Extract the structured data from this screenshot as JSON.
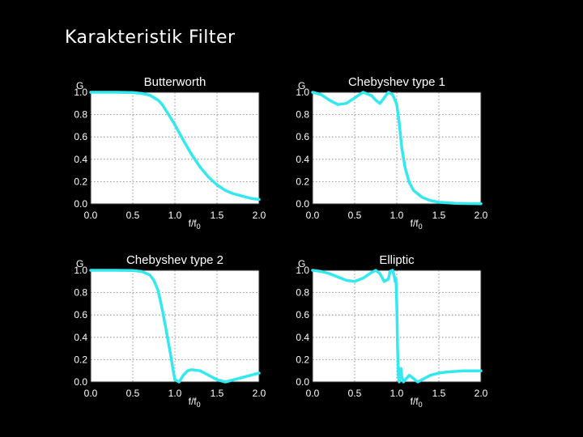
{
  "title": "Karakteristik Filter",
  "colors": {
    "background": "#000000",
    "curve": "#33e8ef",
    "plot_bg": "#ffffff",
    "grid": "#777777",
    "text": "#ffffff"
  },
  "chart_data": [
    {
      "type": "line",
      "title": "Butterworth",
      "ylabel": "G",
      "xlabel": "f/f0",
      "xlim": [
        0,
        2
      ],
      "ylim": [
        0,
        1
      ],
      "xticks": [
        "0.0",
        "0.5",
        "1.0",
        "1.5",
        "2.0"
      ],
      "yticks": [
        "0.0",
        "0.2",
        "0.4",
        "0.6",
        "0.8",
        "1.0"
      ],
      "grid": true,
      "series": [
        {
          "x": [
            0,
            0.3,
            0.5,
            0.6,
            0.7,
            0.8,
            0.85,
            0.9,
            0.95,
            1.0,
            1.05,
            1.1,
            1.2,
            1.3,
            1.4,
            1.5,
            1.6,
            1.7,
            1.8,
            1.9,
            2.0
          ],
          "y": [
            1.0,
            1.0,
            0.997,
            0.99,
            0.975,
            0.93,
            0.89,
            0.83,
            0.77,
            0.707,
            0.64,
            0.57,
            0.44,
            0.33,
            0.24,
            0.17,
            0.12,
            0.09,
            0.07,
            0.05,
            0.04
          ]
        }
      ]
    },
    {
      "type": "line",
      "title": "Chebyshev type 1",
      "ylabel": "G",
      "xlabel": "f/f0",
      "xlim": [
        0,
        2
      ],
      "ylim": [
        0,
        1
      ],
      "xticks": [
        "0.0",
        "0.5",
        "1.0",
        "1.5",
        "2.0"
      ],
      "yticks": [
        "0.0",
        "0.2",
        "0.4",
        "0.6",
        "0.8",
        "1.0"
      ],
      "grid": true,
      "series": [
        {
          "x": [
            0,
            0.1,
            0.2,
            0.3,
            0.4,
            0.5,
            0.6,
            0.7,
            0.75,
            0.8,
            0.85,
            0.9,
            0.95,
            0.98,
            1.0,
            1.03,
            1.06,
            1.1,
            1.15,
            1.2,
            1.3,
            1.4,
            1.5,
            1.7,
            2.0
          ],
          "y": [
            1.0,
            0.98,
            0.93,
            0.89,
            0.9,
            0.95,
            1.0,
            0.97,
            0.93,
            0.9,
            0.95,
            1.0,
            0.98,
            0.93,
            0.89,
            0.72,
            0.5,
            0.32,
            0.19,
            0.12,
            0.06,
            0.03,
            0.015,
            0.006,
            0.002
          ]
        }
      ]
    },
    {
      "type": "line",
      "title": "Chebyshev type 2",
      "ylabel": "G",
      "xlabel": "f/f0",
      "xlim": [
        0,
        2
      ],
      "ylim": [
        0,
        1
      ],
      "xticks": [
        "0.0",
        "0.5",
        "1.0",
        "1.5",
        "2.0"
      ],
      "yticks": [
        "0.0",
        "0.2",
        "0.4",
        "0.6",
        "0.8",
        "1.0"
      ],
      "grid": true,
      "series": [
        {
          "x": [
            0,
            0.3,
            0.5,
            0.6,
            0.7,
            0.75,
            0.8,
            0.85,
            0.9,
            0.95,
            0.98,
            1.0,
            1.05,
            1.1,
            1.15,
            1.2,
            1.3,
            1.4,
            1.5,
            1.6,
            1.7,
            1.8,
            1.9,
            2.0
          ],
          "y": [
            1.0,
            1.0,
            0.998,
            0.99,
            0.96,
            0.91,
            0.82,
            0.65,
            0.45,
            0.24,
            0.1,
            0.02,
            0.0,
            0.06,
            0.1,
            0.11,
            0.1,
            0.06,
            0.02,
            0.0,
            0.02,
            0.04,
            0.06,
            0.08
          ]
        }
      ]
    },
    {
      "type": "line",
      "title": "Elliptic",
      "ylabel": "G",
      "xlabel": "f/f0",
      "xlim": [
        0,
        2
      ],
      "ylim": [
        0,
        1
      ],
      "xticks": [
        "0.0",
        "0.5",
        "1.0",
        "1.5",
        "2.0"
      ],
      "yticks": [
        "0.0",
        "0.2",
        "0.4",
        "0.6",
        "0.8",
        "1.0"
      ],
      "grid": true,
      "series": [
        {
          "x": [
            0,
            0.1,
            0.2,
            0.3,
            0.4,
            0.5,
            0.6,
            0.7,
            0.75,
            0.8,
            0.85,
            0.9,
            0.92,
            0.95,
            0.97,
            0.98,
            0.99,
            1.0,
            1.01,
            1.02,
            1.03,
            1.04,
            1.05,
            1.06,
            1.08,
            1.1,
            1.15,
            1.2,
            1.25,
            1.3,
            1.4,
            1.5,
            1.6,
            1.8,
            2.0
          ],
          "y": [
            1.0,
            0.99,
            0.97,
            0.94,
            0.91,
            0.9,
            0.93,
            0.98,
            1.0,
            0.97,
            0.9,
            0.92,
            0.99,
            1.0,
            0.95,
            0.9,
            0.92,
            0.7,
            0.3,
            0.05,
            0.0,
            0.1,
            0.12,
            0.05,
            0.0,
            0.02,
            0.06,
            0.03,
            0.0,
            0.02,
            0.06,
            0.08,
            0.09,
            0.1,
            0.1
          ]
        }
      ]
    }
  ]
}
